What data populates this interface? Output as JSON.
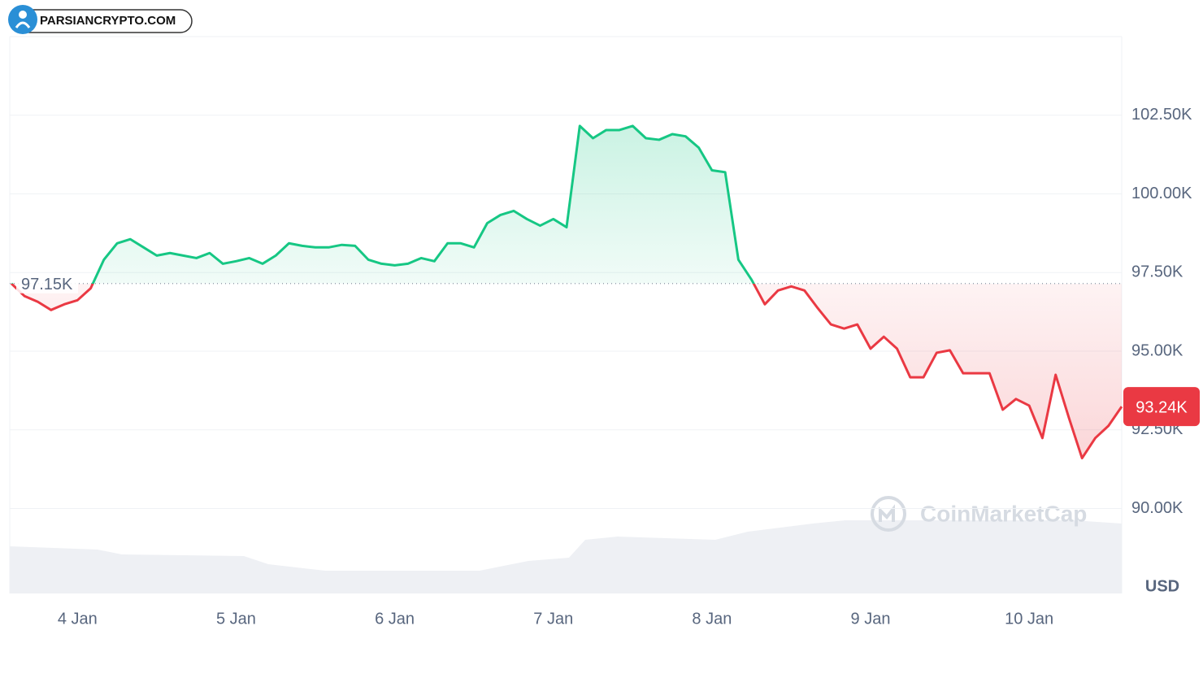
{
  "logo_text": "PARSIANCRYPTO.COM",
  "chart_data": {
    "type": "line",
    "categories": [
      null,
      null,
      null,
      null,
      null,
      "4 Jan",
      null,
      null,
      null,
      null,
      null,
      null,
      null,
      null,
      null,
      null,
      null,
      "5 Jan",
      null,
      null,
      null,
      null,
      null,
      null,
      null,
      null,
      null,
      null,
      null,
      "6 Jan",
      null,
      null,
      null,
      null,
      null,
      null,
      null,
      null,
      null,
      null,
      null,
      "7 Jan",
      null,
      null,
      null,
      null,
      null,
      null,
      null,
      null,
      null,
      null,
      null,
      "8 Jan",
      null,
      null,
      null,
      null,
      null,
      null,
      null,
      null,
      null,
      null,
      null,
      "9 Jan",
      null,
      null,
      null,
      null,
      null,
      null,
      null,
      null,
      null,
      null,
      null,
      "10 Jan",
      null,
      null,
      null,
      null,
      null,
      null,
      null
    ],
    "values": [
      97150,
      96750,
      96570,
      96310,
      96490,
      96620,
      97000,
      97910,
      98430,
      98560,
      98300,
      98040,
      98120,
      98040,
      97960,
      98120,
      97780,
      97860,
      97960,
      97780,
      98040,
      98430,
      98350,
      98300,
      98300,
      98380,
      98350,
      97910,
      97780,
      97730,
      97780,
      97960,
      97860,
      98430,
      98430,
      98300,
      99070,
      99330,
      99460,
      99200,
      98990,
      99200,
      98940,
      102160,
      101770,
      102030,
      102030,
      102160,
      101770,
      101720,
      101900,
      101830,
      101470,
      100750,
      100690,
      97910,
      97270,
      96490,
      96930,
      97060,
      96930,
      96370,
      95850,
      95720,
      95850,
      95080,
      95460,
      95080,
      94170,
      94170,
      94950,
      95030,
      94300,
      94300,
      94300,
      93140,
      93480,
      93270,
      92240,
      94250,
      92890,
      91600,
      92240,
      92630,
      93240
    ],
    "up_color": "#16c784",
    "down_color": "#ea3943",
    "reference_line": {
      "value": 97150,
      "label": "97.15K"
    },
    "current_price": {
      "value": 93240,
      "label": "93.24K"
    },
    "ylim": [
      87300,
      105000
    ],
    "yticks": [
      {
        "value": 90000,
        "label": "90.00K"
      },
      {
        "value": 92500,
        "label": "92.50K"
      },
      {
        "value": 95000,
        "label": "95.00K"
      },
      {
        "value": 97500,
        "label": "97.50K"
      },
      {
        "value": 100000,
        "label": "100.00K"
      },
      {
        "value": 102500,
        "label": "102.50K"
      }
    ],
    "grid": true,
    "currency": "USD",
    "watermark": "CoinMarketCap"
  }
}
